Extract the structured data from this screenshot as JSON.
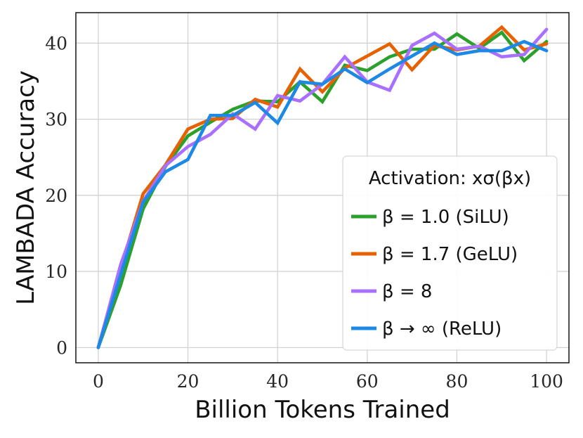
{
  "chart_data": {
    "type": "line",
    "title": "",
    "xlabel": "Billion Tokens Trained",
    "ylabel": "LAMBADA Accuracy",
    "xlim": [
      -5,
      105
    ],
    "ylim": [
      -2,
      44
    ],
    "xticks": [
      0,
      20,
      40,
      60,
      80,
      100
    ],
    "yticks": [
      0,
      10,
      20,
      30,
      40
    ],
    "xtick_labels": [
      "0",
      "20",
      "40",
      "60",
      "80",
      "100"
    ],
    "ytick_labels": [
      "0",
      "10",
      "20",
      "30",
      "40"
    ],
    "grid": true,
    "legend_position": "lower-right",
    "legend_title": "Activation: xσ(βx)",
    "x": [
      0,
      5,
      10,
      15,
      20,
      25,
      30,
      35,
      40,
      45,
      50,
      55,
      60,
      65,
      70,
      75,
      80,
      85,
      90,
      95,
      100
    ],
    "series": [
      {
        "name": "β = 1.0 (SiLU)",
        "color": "#2ca02c",
        "values": [
          0,
          8.2,
          18.2,
          23.8,
          27.8,
          29.6,
          31.3,
          32.4,
          32.3,
          34.9,
          32.3,
          37.1,
          36.4,
          38.2,
          39.2,
          39.2,
          41.2,
          39.3,
          41.4,
          37.7,
          40.2
        ]
      },
      {
        "name": "β = 1.7 (GeLU)",
        "color": "#e66101",
        "values": [
          0,
          10.4,
          20.2,
          24.0,
          28.7,
          30.0,
          30.1,
          32.6,
          31.6,
          36.6,
          33.6,
          36.7,
          38.3,
          39.9,
          36.5,
          39.7,
          39.1,
          39.6,
          42.1,
          39.1,
          39.9
        ]
      },
      {
        "name": "β = 8",
        "color": "#a970ff",
        "values": [
          0,
          10.9,
          19.2,
          23.9,
          26.4,
          28.0,
          30.7,
          28.7,
          33.1,
          32.4,
          34.6,
          38.2,
          34.9,
          33.8,
          39.7,
          41.3,
          39.2,
          39.6,
          38.2,
          38.5,
          41.8
        ]
      },
      {
        "name": "β → ∞ (ReLU)",
        "color": "#1e88e5",
        "values": [
          0,
          9.6,
          19.1,
          23.1,
          24.7,
          30.5,
          30.5,
          32.2,
          29.5,
          34.9,
          34.6,
          36.6,
          34.8,
          36.6,
          38.3,
          40.0,
          38.5,
          39.0,
          39.0,
          40.2,
          39.0
        ]
      }
    ]
  }
}
